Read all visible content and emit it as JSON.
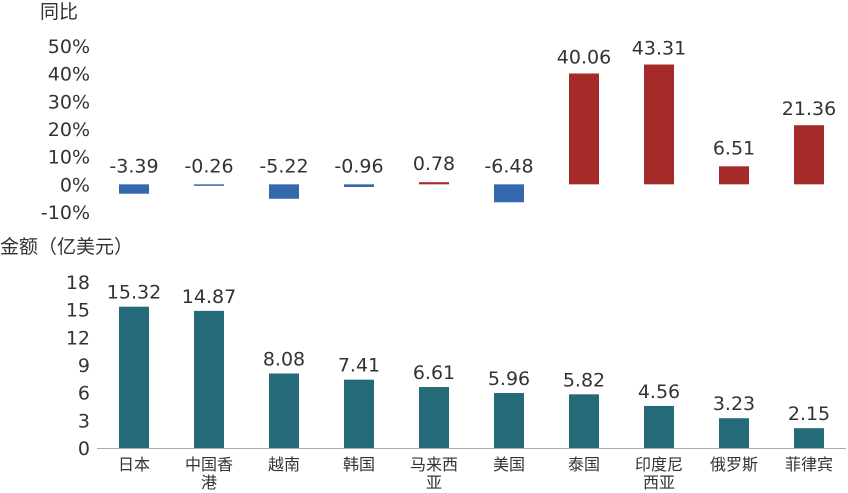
{
  "chart_data": [
    {
      "type": "bar",
      "ylabel": "同比",
      "ylim": [
        -10,
        50
      ],
      "y_tick_labels": [
        "50%",
        "40%",
        "30%",
        "20%",
        "10%",
        "0%",
        "-10%"
      ],
      "categories": [
        "日本",
        "中国香港",
        "越南",
        "韩国",
        "马来西亚",
        "美国",
        "泰国",
        "印度尼西亚",
        "俄罗斯",
        "菲律宾"
      ],
      "values": [
        -3.39,
        -0.26,
        -5.22,
        -0.96,
        0.78,
        -6.48,
        40.06,
        43.31,
        6.51,
        21.36
      ],
      "value_labels": [
        "-3.39",
        "-0.26",
        "-5.22",
        "-0.96",
        "0.78",
        "-6.48",
        "40.06",
        "43.31",
        "6.51",
        "21.36"
      ],
      "colors": {
        "negative": "#3468ac",
        "positive": "#a52a2a"
      },
      "grid": false,
      "legend": "none"
    },
    {
      "type": "bar",
      "ylabel": "金额（亿美元）",
      "ylim": [
        0,
        18
      ],
      "y_tick_labels": [
        "18",
        "15",
        "12",
        "9",
        "6",
        "3",
        "0"
      ],
      "categories": [
        "日本",
        "中国香港",
        "越南",
        "韩国",
        "马来西亚",
        "美国",
        "泰国",
        "印度尼西亚",
        "俄罗斯",
        "菲律宾"
      ],
      "category_labels": [
        [
          "日本"
        ],
        [
          "中国香",
          "港"
        ],
        [
          "越南"
        ],
        [
          "韩国"
        ],
        [
          "马来西",
          "亚"
        ],
        [
          "美国"
        ],
        [
          "泰国"
        ],
        [
          "印度尼",
          "西亚"
        ],
        [
          "俄罗斯"
        ],
        [
          "菲律宾"
        ]
      ],
      "values": [
        15.32,
        14.87,
        8.08,
        7.41,
        6.61,
        5.96,
        5.82,
        4.56,
        3.23,
        2.15
      ],
      "value_labels": [
        "15.32",
        "14.87",
        "8.08",
        "7.41",
        "6.61",
        "5.96",
        "5.82",
        "4.56",
        "3.23",
        "2.15"
      ],
      "colors": {
        "bar": "#256a79",
        "axis": "#aaaaaa"
      },
      "grid": false,
      "legend": "none"
    }
  ]
}
